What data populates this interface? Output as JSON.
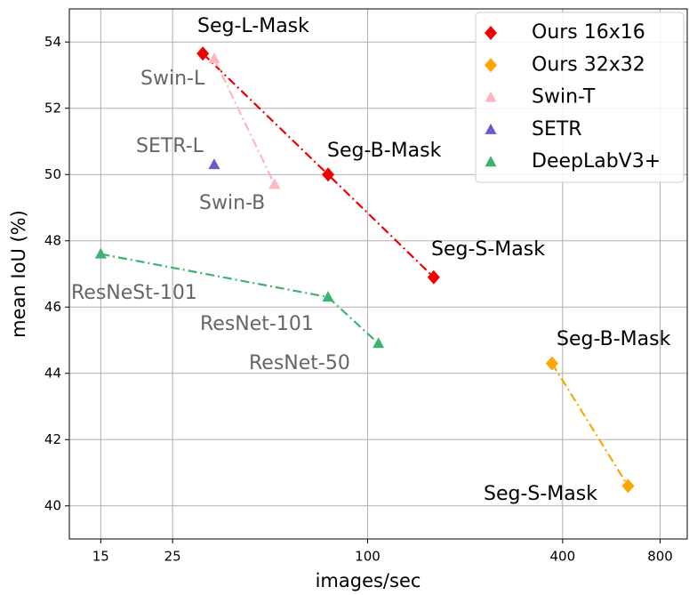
{
  "chart_data": {
    "type": "line",
    "xlabel": "images/sec",
    "ylabel": "mean IoU (%)",
    "xscale": "log",
    "xlim": [
      12,
      970
    ],
    "ylim": [
      39,
      55
    ],
    "xticks": [
      15,
      25,
      100,
      400,
      800
    ],
    "yticks": [
      40,
      42,
      44,
      46,
      48,
      50,
      52,
      54
    ],
    "grid": true,
    "legend": "upper right",
    "series": [
      {
        "name": "Ours 16x16",
        "color": "#ee0000",
        "marker": "diamond",
        "x": [
          31,
          75.5,
          160
        ],
        "values": [
          53.65,
          50.0,
          46.9
        ]
      },
      {
        "name": "Ours 32x32",
        "color": "#ffa500",
        "marker": "diamond",
        "x": [
          371,
          637
        ],
        "values": [
          44.3,
          40.6
        ]
      },
      {
        "name": "Swin-T",
        "color": "#ffb6c1",
        "marker": "triangle",
        "x": [
          33.6,
          51.6
        ],
        "values": [
          53.5,
          49.7
        ]
      },
      {
        "name": "SETR",
        "color": "#6a5acd",
        "marker": "triangle",
        "x": [
          33.6
        ],
        "values": [
          50.3
        ]
      },
      {
        "name": "DeepLabV3+",
        "color": "#3cb371",
        "marker": "triangle",
        "x": [
          15,
          75.5,
          108
        ],
        "values": [
          47.6,
          46.3,
          44.9
        ]
      }
    ],
    "annotations": [
      {
        "text": "Seg-L-Mask",
        "color": "#000000"
      },
      {
        "text": "Swin-L",
        "color": "#666666"
      },
      {
        "text": "SETR-L",
        "color": "#666666"
      },
      {
        "text": "Seg-B-Mask",
        "color": "#000000"
      },
      {
        "text": "Swin-B",
        "color": "#666666"
      },
      {
        "text": "Seg-S-Mask",
        "color": "#000000"
      },
      {
        "text": "ResNeSt-101",
        "color": "#666666"
      },
      {
        "text": "ResNet-101",
        "color": "#666666"
      },
      {
        "text": "Seg-B-Mask",
        "color": "#000000"
      },
      {
        "text": "ResNet-50",
        "color": "#666666"
      },
      {
        "text": "Seg-S-Mask",
        "color": "#000000"
      }
    ]
  }
}
